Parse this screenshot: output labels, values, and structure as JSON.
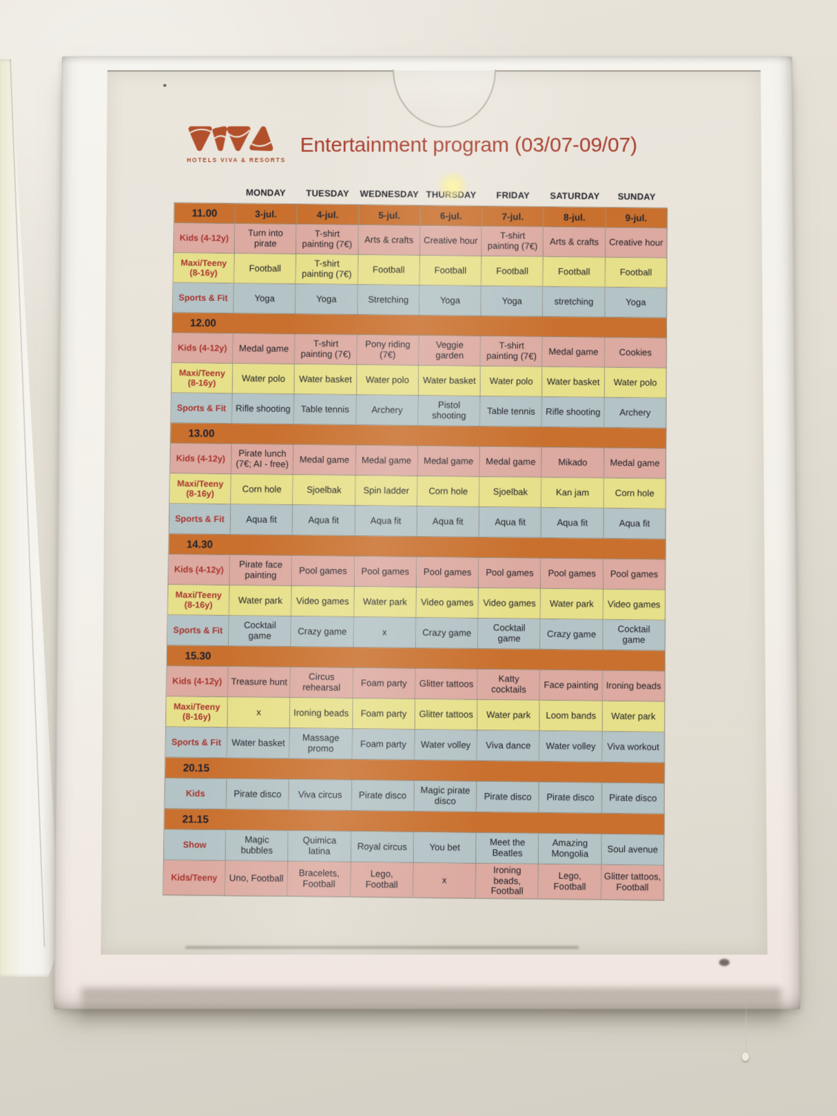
{
  "header": {
    "logo": {
      "brand": "VIVA",
      "subtitle": "HOTELS VIVA & RESORTS"
    },
    "title": "Entertainment program (03/07-09/07)"
  },
  "days": [
    "MONDAY",
    "TUESDAY",
    "WEDNESDAY",
    "THURSDAY",
    "FRIDAY",
    "SATURDAY",
    "SUNDAY"
  ],
  "schedule": [
    {
      "time": "11.00",
      "dates": [
        "3-jul.",
        "4-jul.",
        "5-jul.",
        "6-jul.",
        "7-jul.",
        "8-jul.",
        "9-jul."
      ],
      "rows": [
        {
          "label": "Kids (4-12y)",
          "type": "kids",
          "cells": [
            "Turn into pirate",
            "T-shirt painting (7€)",
            "Arts & crafts",
            "Creative hour",
            "T-shirt painting (7€)",
            "Arts & crafts",
            "Creative hour"
          ]
        },
        {
          "label": "Maxi/Teeny (8-16y)",
          "type": "maxi",
          "cells": [
            "Football",
            "T-shirt painting (7€)",
            "Football",
            "Football",
            "Football",
            "Football",
            "Football"
          ]
        },
        {
          "label": "Sports & Fit",
          "type": "sports",
          "cells": [
            "Yoga",
            "Yoga",
            "Stretching",
            "Yoga",
            "Yoga",
            "stretching",
            "Yoga"
          ]
        }
      ]
    },
    {
      "time": "12.00",
      "rows": [
        {
          "label": "Kids (4-12y)",
          "type": "kids",
          "cells": [
            "Medal game",
            "T-shirt painting (7€)",
            "Pony riding (7€)",
            "Veggie garden",
            "T-shirt painting (7€)",
            "Medal game",
            "Cookies"
          ]
        },
        {
          "label": "Maxi/Teeny (8-16y)",
          "type": "maxi",
          "cells": [
            "Water polo",
            "Water basket",
            "Water polo",
            "Water basket",
            "Water polo",
            "Water basket",
            "Water polo"
          ]
        },
        {
          "label": "Sports & Fit",
          "type": "sports",
          "cells": [
            "Rifle shooting",
            "Table tennis",
            "Archery",
            "Pistol shooting",
            "Table tennis",
            "Rifle shooting",
            "Archery"
          ]
        }
      ]
    },
    {
      "time": "13.00",
      "rows": [
        {
          "label": "Kids (4-12y)",
          "type": "kids",
          "cells": [
            "Pirate lunch (7€; AI - free)",
            "Medal game",
            "Medal game",
            "Medal game",
            "Medal game",
            "Mikado",
            "Medal game"
          ]
        },
        {
          "label": "Maxi/Teeny (8-16y)",
          "type": "maxi",
          "cells": [
            "Corn hole",
            "Sjoelbak",
            "Spin ladder",
            "Corn hole",
            "Sjoelbak",
            "Kan jam",
            "Corn hole"
          ]
        },
        {
          "label": "Sports & Fit",
          "type": "sports",
          "cells": [
            "Aqua fit",
            "Aqua fit",
            "Aqua fit",
            "Aqua fit",
            "Aqua fit",
            "Aqua fit",
            "Aqua fit"
          ]
        }
      ]
    },
    {
      "time": "14.30",
      "rows": [
        {
          "label": "Kids (4-12y)",
          "type": "kids",
          "cells": [
            "Pirate face painting",
            "Pool games",
            "Pool games",
            "Pool games",
            "Pool games",
            "Pool games",
            "Pool games"
          ]
        },
        {
          "label": "Maxi/Teeny (8-16y)",
          "type": "maxi",
          "cells": [
            "Water park",
            "Video games",
            "Water park",
            "Video games",
            "Video games",
            "Water park",
            "Video games"
          ]
        },
        {
          "label": "Sports & Fit",
          "type": "sports",
          "cells": [
            "Cocktail game",
            "Crazy game",
            "x",
            "Crazy game",
            "Cocktail game",
            "Crazy game",
            "Cocktail game"
          ]
        }
      ]
    },
    {
      "time": "15.30",
      "rows": [
        {
          "label": "Kids (4-12y)",
          "type": "kids",
          "cells": [
            "Treasure hunt",
            "Circus rehearsal",
            "Foam party",
            "Glitter tattoos",
            "Katty cocktails",
            "Face painting",
            "Ironing beads"
          ]
        },
        {
          "label": "Maxi/Teeny (8-16y)",
          "type": "maxi",
          "cells": [
            "x",
            "Ironing beads",
            "Foam party",
            "Glitter tattoos",
            "Water park",
            "Loom bands",
            "Water park"
          ]
        },
        {
          "label": "Sports & Fit",
          "type": "sports",
          "cells": [
            "Water basket",
            "Massage promo",
            "Foam party",
            "Water volley",
            "Viva dance",
            "Water volley",
            "Viva workout"
          ]
        }
      ]
    },
    {
      "time": "20.15",
      "rows": [
        {
          "label": "Kids",
          "type": "sports",
          "cells": [
            "Pirate disco",
            "Viva circus",
            "Pirate disco",
            "Magic pirate disco",
            "Pirate disco",
            "Pirate disco",
            "Pirate disco"
          ]
        }
      ]
    },
    {
      "time": "21.15",
      "rows": [
        {
          "label": "Show",
          "type": "sports",
          "cells": [
            "Magic bubbles",
            "Quimica latina",
            "Royal circus",
            "You bet",
            "Meet the Beatles",
            "Amazing Mongolia",
            "Soul avenue"
          ]
        },
        {
          "label": "Kids/Teeny",
          "type": "kids",
          "cells": [
            "Uno, Football",
            "Bracelets, Football",
            "Lego, Football",
            "x",
            "Ironing beads, Football",
            "Lego, Football",
            "Glitter tattoos, Football"
          ]
        }
      ]
    }
  ],
  "colors": {
    "band_orange": "#c9702e",
    "kids_pink": "#dcaaa0",
    "maxi_yellow": "#e7e08a",
    "sports_blue": "#b4c3c6",
    "label_red": "#a8342e",
    "title_red": "#a73b2b",
    "logo_rust": "#b3502c"
  }
}
